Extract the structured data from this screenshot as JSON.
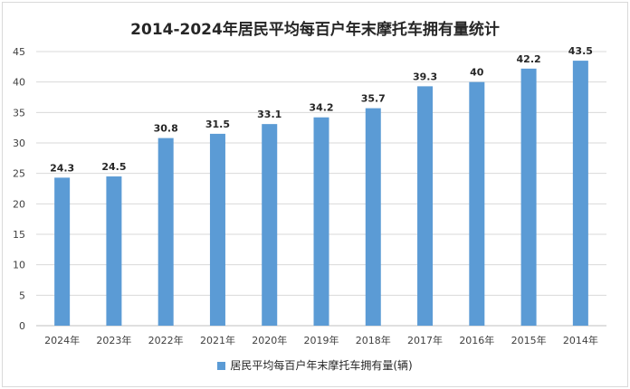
{
  "chart_data": {
    "type": "bar",
    "title": "2014-2024年居民平均每百户年末摩托车拥有量统计",
    "categories": [
      "2024年",
      "2023年",
      "2022年",
      "2021年",
      "2020年",
      "2019年",
      "2018年",
      "2017年",
      "2016年",
      "2015年",
      "2014年"
    ],
    "series": [
      {
        "name": "居民平均每百户年末摩托车拥有量(辆)",
        "values": [
          24.3,
          24.5,
          30.8,
          31.5,
          33.1,
          34.2,
          35.7,
          39.3,
          40,
          42.2,
          43.5
        ],
        "labels": [
          "24.3",
          "24.5",
          "30.8",
          "31.5",
          "33.1",
          "34.2",
          "35.7",
          "39.3",
          "40",
          "42.2",
          "43.5"
        ]
      }
    ],
    "ylim": [
      0,
      45
    ],
    "yticks": [
      0,
      5,
      10,
      15,
      20,
      25,
      30,
      35,
      40,
      45
    ],
    "grid": true,
    "legend": "bottom",
    "xlabel": "",
    "ylabel": "",
    "colors": {
      "bar": "#5b9bd5",
      "grid": "#d9d9d9",
      "axis": "#bfbfbf",
      "text": "#404040"
    }
  }
}
